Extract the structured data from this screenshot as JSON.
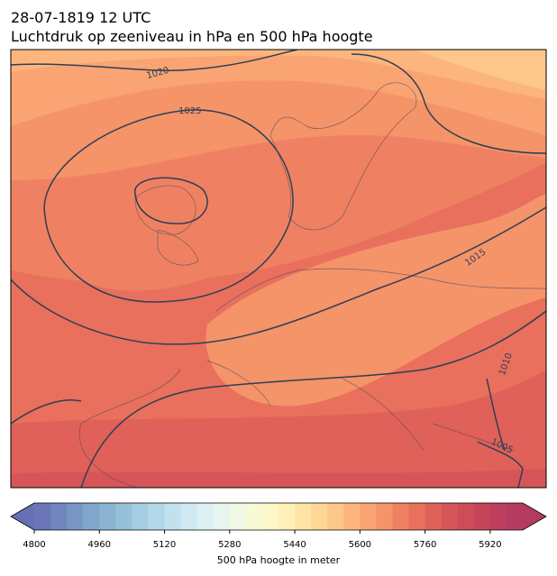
{
  "header": {
    "title": "28-07-1819 12 UTC",
    "subtitle": "Luchtdruk op zeeniveau in hPa en 500 hPa hoogte"
  },
  "isobar_labels": [
    1020,
    1025,
    1015,
    1010,
    1005
  ],
  "colorbar": {
    "label": "500 hPa hoogte in meter",
    "range": [
      4800,
      6000
    ],
    "ticks": [
      4800,
      4960,
      5120,
      5280,
      5440,
      5600,
      5760,
      5920
    ],
    "under_color": "#6670b3",
    "over_color": "#b23b5f",
    "colors": [
      "#6b75b8",
      "#7186be",
      "#7896c4",
      "#80a6cb",
      "#8ab4d2",
      "#96c1d9",
      "#a4cde1",
      "#b2d7e8",
      "#c1e1ee",
      "#d0e9f2",
      "#ddf0f4",
      "#e8f5ef",
      "#f1f8e4",
      "#f8fad6",
      "#fdf8c9",
      "#fef0b8",
      "#fee5a6",
      "#fed797",
      "#fdc789",
      "#fcb67d",
      "#f9a472",
      "#f59369",
      "#ef8162",
      "#e8705c",
      "#e06159",
      "#d75558",
      "#ce4b58",
      "#c6445a",
      "#be3f5d",
      "#b53c60"
    ]
  }
}
